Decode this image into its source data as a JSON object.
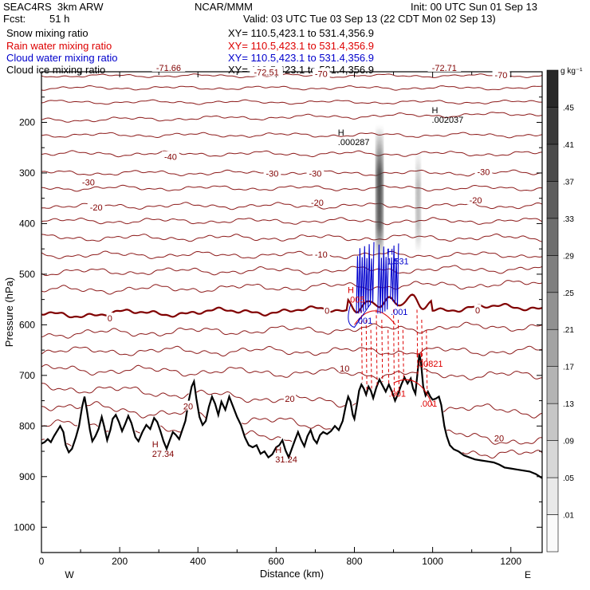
{
  "header": {
    "project": "SEAC4RS  3km ARW",
    "center": "NCAR/MMM",
    "init": "Init: 00 UTC Sun 01 Sep 13",
    "fcst_label": "Fcst:",
    "fcst_value": "51 h",
    "valid": "Valid: 03 UTC Tue 03 Sep 13 (22 CDT Mon 02 Sep 13)"
  },
  "fields": [
    {
      "name": "Snow mixing ratio",
      "xy": "XY= 110.5,423.1 to 531.4,356.9",
      "color": "#000000"
    },
    {
      "name": "Rain water mixing ratio",
      "xy": "XY= 110.5,423.1 to 531.4,356.9",
      "color": "#dd0000"
    },
    {
      "name": "Cloud water mixing ratio",
      "xy": "XY= 110.5,423.1 to 531.4,356.9",
      "color": "#0000cc"
    },
    {
      "name": "Cloud ice mixing ratio",
      "xy": "XY= 110.5,423.1 to 531.4,356.9",
      "color": "#000000"
    }
  ],
  "colorbar": {
    "unit": "g kg⁻¹",
    "labels": [
      ".01",
      ".05",
      ".09",
      ".13",
      ".17",
      ".21",
      ".25",
      ".29",
      ".33",
      ".37",
      ".41",
      ".45"
    ]
  },
  "chart_data": {
    "type": "cross-section",
    "xlabel": "Distance (km)",
    "ylabel": "Pressure (hPa)",
    "xlim": [
      0,
      1280
    ],
    "ylim": [
      1050,
      100
    ],
    "x_ticks": [
      0,
      200,
      400,
      600,
      800,
      1000,
      1200
    ],
    "y_ticks": [
      200,
      300,
      400,
      500,
      600,
      700,
      800,
      900,
      1000
    ],
    "left_end_label": "W",
    "right_end_label": "E",
    "colors": {
      "isotherm": "#800000",
      "freezing_level": "#800000",
      "rain": "#dd0000",
      "cloud_water": "#0000cc",
      "terrain": "#000000",
      "snow_shading": "#404040"
    },
    "temperature_labels": [
      {
        "text": "-71.66",
        "x": 325,
        "p": 92
      },
      {
        "text": "-72.51",
        "x": 575,
        "p": 101
      },
      {
        "text": "-70",
        "x": 715,
        "p": 104
      },
      {
        "text": "-72.71",
        "x": 1030,
        "p": 92
      },
      {
        "text": "-70",
        "x": 1175,
        "p": 106
      },
      {
        "text": "-40",
        "x": 330,
        "p": 268
      },
      {
        "text": "-30",
        "x": 120,
        "p": 318
      },
      {
        "text": "-30",
        "x": 590,
        "p": 301
      },
      {
        "text": "-30",
        "x": 700,
        "p": 301
      },
      {
        "text": "-30",
        "x": 1130,
        "p": 298
      },
      {
        "text": "-20",
        "x": 140,
        "p": 368
      },
      {
        "text": "-20",
        "x": 705,
        "p": 358
      },
      {
        "text": "-20",
        "x": 1110,
        "p": 354
      },
      {
        "text": "-10",
        "x": 715,
        "p": 461
      },
      {
        "text": "0",
        "x": 175,
        "p": 587
      },
      {
        "text": "0",
        "x": 730,
        "p": 572
      },
      {
        "text": "0",
        "x": 1115,
        "p": 571
      },
      {
        "text": "10",
        "x": 775,
        "p": 686
      },
      {
        "text": "20",
        "x": 375,
        "p": 761
      },
      {
        "text": "20",
        "x": 635,
        "p": 746
      },
      {
        "text": "20",
        "x": 1170,
        "p": 824
      }
    ],
    "extrema_labels": [
      {
        "mark": "H",
        "text": ".002037",
        "x": 1010,
        "p": 196
      },
      {
        "mark": "H",
        "text": ".000287",
        "x": 770,
        "p": 240
      },
      {
        "mark": "H",
        "text": "1.531",
        "x": 895,
        "p": 476
      },
      {
        "mark": "H",
        "text": ".005",
        "x": 795,
        "p": 551
      },
      {
        "mark": "",
        "text": ".001",
        "x": 815,
        "p": 593
      },
      {
        "mark": "",
        "text": ".001",
        "x": 905,
        "p": 576
      },
      {
        "mark": "H",
        "text": ".00821",
        "x": 970,
        "p": 678
      },
      {
        "mark": "",
        "text": ".001",
        "x": 900,
        "p": 737
      },
      {
        "mark": "",
        "text": ".001",
        "x": 980,
        "p": 757
      },
      {
        "mark": "H",
        "text": "27.34",
        "x": 295,
        "p": 856
      },
      {
        "mark": "H",
        "text": "31.24",
        "x": 610,
        "p": 867
      }
    ]
  }
}
